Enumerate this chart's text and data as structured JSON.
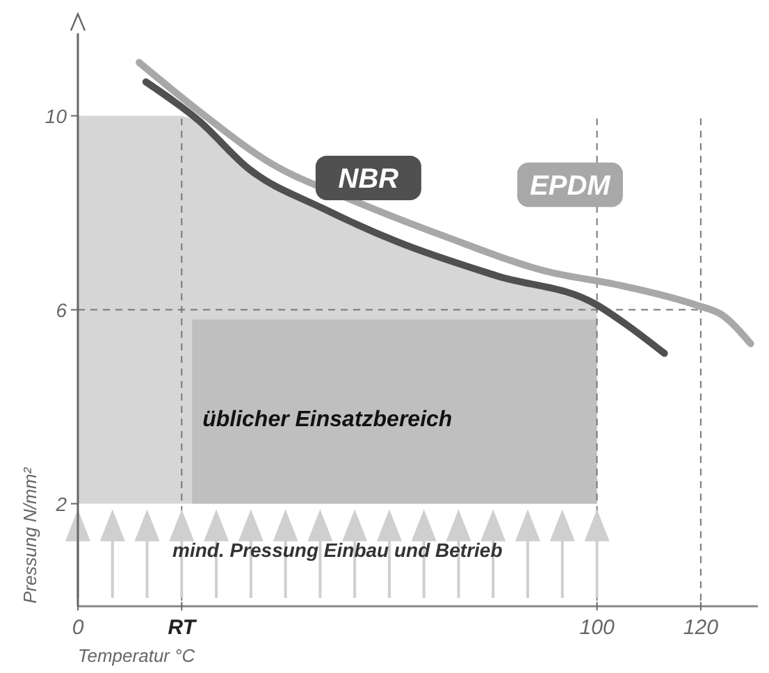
{
  "chart_data": {
    "type": "line",
    "xlabel": "Temperatur °C",
    "ylabel": "Pressung N/mm²",
    "xlim": [
      0,
      131
    ],
    "ylim": [
      0,
      11.7
    ],
    "xticks": [
      0,
      {
        "value": 20,
        "label": "RT"
      },
      100,
      120
    ],
    "yticks": [
      2,
      6,
      10
    ],
    "series": [
      {
        "type": "area",
        "color": "#d6d6d6",
        "x": [
          0,
          20,
          23.3,
          33,
          47,
          61.6,
          80.7,
          100
        ],
        "values": [
          10,
          10,
          9.9,
          8.9,
          8.1,
          7.4,
          6.7,
          6.1
        ]
      },
      {
        "type": "area",
        "color": "#bfbfbf",
        "x": [
          22,
          100
        ],
        "values": [
          5.8,
          5.8
        ]
      },
      {
        "name": "EPDM",
        "color": "#a8a8a8",
        "x": [
          11.8,
          23.3,
          37.5,
          52,
          71,
          90,
          104.6,
          119,
          124,
          129.6
        ],
        "values": [
          11.1,
          10.1,
          9.0,
          8.3,
          7.5,
          6.8,
          6.5,
          6.1,
          5.9,
          5.3
        ]
      },
      {
        "name": "NBR",
        "color": "#505050",
        "x": [
          13.1,
          23.3,
          33,
          47,
          61.6,
          80.7,
          100,
          105.6,
          113
        ],
        "values": [
          10.7,
          9.9,
          8.9,
          8.1,
          7.4,
          6.7,
          6.1,
          5.7,
          5.1
        ]
      }
    ],
    "ref_lines": [
      {
        "axis": "y",
        "value": 6
      }
    ],
    "annotations": [
      "üblicher Einsatzbereich",
      "mind. Pressung Einbau und Betrieb"
    ],
    "line_style": "solid",
    "marker": "none",
    "grid": "x",
    "legend": false
  }
}
